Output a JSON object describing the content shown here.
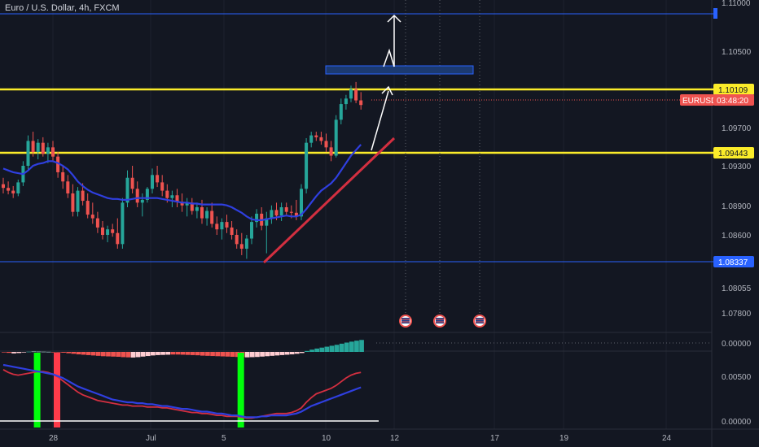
{
  "header": {
    "title": "Euro / U.S. Dollar, 4h, FXCM"
  },
  "price_axis": {
    "ticks": [
      "1.10500",
      "1.09700",
      "1.09300",
      "1.08900",
      "1.08600",
      "1.08055",
      "1.07800"
    ],
    "tick_values": [
      1.105,
      1.097,
      1.093,
      1.089,
      1.086,
      1.08055,
      1.078
    ],
    "top_tick_cut": "1.11000",
    "badges": {
      "resistance": "1.10109",
      "symbol": "EURUSD",
      "countdown": "03:48:20",
      "support": "1.09443",
      "low_line": "1.08337"
    }
  },
  "time_axis": {
    "labels": [
      "28",
      "Jul",
      "5",
      "10",
      "12",
      "17",
      "19",
      "24"
    ]
  },
  "indicator_axes": {
    "osc_ticks": [
      "0.00000"
    ],
    "ma_ticks": [
      "0.00500",
      "0.00000"
    ]
  },
  "colors": {
    "background": "#131722",
    "up": "#26a69a",
    "down": "#ef5350",
    "level_yellow": "#fbec2a",
    "level_blue": "#2962ff",
    "ma_blue": "#2f3fe0",
    "trend_red": "#d32f40",
    "signal_green": "#00ff0a",
    "signal_red": "#ff3b4a",
    "grid": "#1e222d"
  },
  "chart_data": {
    "type": "candlestick",
    "title": "Euro / U.S. Dollar, 4h, FXCM",
    "ylim": [
      1.0755,
      1.1115
    ],
    "levels": [
      {
        "price": 1.1109,
        "style": "blue"
      },
      {
        "price": 1.10109,
        "style": "yellow"
      },
      {
        "price": 1.09443,
        "style": "yellow"
      },
      {
        "price": 1.08337,
        "style": "blue"
      }
    ],
    "last_price": 1.10009,
    "candles": [
      [
        1.0915,
        1.0922,
        1.0905,
        1.0911
      ],
      [
        1.0911,
        1.0918,
        1.0904,
        1.0908
      ],
      [
        1.0908,
        1.0913,
        1.09,
        1.0905
      ],
      [
        1.0905,
        1.092,
        1.0902,
        1.0917
      ],
      [
        1.0917,
        1.094,
        1.0913,
        1.0935
      ],
      [
        1.0935,
        1.0968,
        1.093,
        1.0962
      ],
      [
        1.0962,
        1.0972,
        1.0945,
        1.095
      ],
      [
        1.095,
        1.0964,
        1.0942,
        1.096
      ],
      [
        1.096,
        1.0966,
        1.0945,
        1.0948
      ],
      [
        1.0948,
        1.096,
        1.0938,
        1.0955
      ],
      [
        1.0955,
        1.0962,
        1.094,
        1.0945
      ],
      [
        1.0945,
        1.095,
        1.0922,
        1.0928
      ],
      [
        1.0928,
        1.0935,
        1.091,
        1.0918
      ],
      [
        1.0918,
        1.0925,
        1.09,
        1.0905
      ],
      [
        1.0905,
        1.0915,
        1.088,
        1.0885
      ],
      [
        1.0885,
        1.0912,
        1.088,
        1.0908
      ],
      [
        1.0908,
        1.0916,
        1.0892,
        1.0897
      ],
      [
        1.0897,
        1.0905,
        1.0878,
        1.0882
      ],
      [
        1.0882,
        1.0895,
        1.0872,
        1.0878
      ],
      [
        1.0878,
        1.0885,
        1.0862,
        1.0868
      ],
      [
        1.0868,
        1.0875,
        1.0855,
        1.086
      ],
      [
        1.086,
        1.087,
        1.0852,
        1.0866
      ],
      [
        1.0866,
        1.0872,
        1.0858,
        1.0862
      ],
      [
        1.0862,
        1.0878,
        1.0845,
        1.085
      ],
      [
        1.085,
        1.09,
        1.0845,
        1.0895
      ],
      [
        1.0895,
        1.093,
        1.089,
        1.0922
      ],
      [
        1.0922,
        1.0935,
        1.0905,
        1.091
      ],
      [
        1.091,
        1.0918,
        1.089,
        1.0895
      ],
      [
        1.0895,
        1.0905,
        1.088,
        1.0898
      ],
      [
        1.0898,
        1.0912,
        1.0895,
        1.091
      ],
      [
        1.091,
        1.0932,
        1.0905,
        1.0925
      ],
      [
        1.0925,
        1.0935,
        1.0912,
        1.0917
      ],
      [
        1.0917,
        1.0925,
        1.0902,
        1.0908
      ],
      [
        1.0908,
        1.0915,
        1.0895,
        1.09
      ],
      [
        1.09,
        1.0908,
        1.089,
        1.0903
      ],
      [
        1.0903,
        1.091,
        1.089,
        1.0896
      ],
      [
        1.0896,
        1.0905,
        1.0885,
        1.0892
      ],
      [
        1.0892,
        1.09,
        1.088,
        1.0895
      ],
      [
        1.0895,
        1.09,
        1.0882,
        1.0886
      ],
      [
        1.0886,
        1.0895,
        1.0878,
        1.089
      ],
      [
        1.089,
        1.0898,
        1.0872,
        1.0878
      ],
      [
        1.0878,
        1.089,
        1.087,
        1.0886
      ],
      [
        1.0886,
        1.0895,
        1.0868,
        1.0872
      ],
      [
        1.0872,
        1.088,
        1.086,
        1.0866
      ],
      [
        1.0866,
        1.0878,
        1.0855,
        1.0874
      ],
      [
        1.0874,
        1.0882,
        1.0862,
        1.0868
      ],
      [
        1.0868,
        1.0875,
        1.0855,
        1.086
      ],
      [
        1.086,
        1.0866,
        1.0845,
        1.085
      ],
      [
        1.085,
        1.0862,
        1.0838,
        1.0845
      ],
      [
        1.0845,
        1.086,
        1.0834,
        1.0856
      ],
      [
        1.0856,
        1.088,
        1.085,
        1.0874
      ],
      [
        1.0874,
        1.0888,
        1.0868,
        1.0883
      ],
      [
        1.0883,
        1.089,
        1.0865,
        1.087
      ],
      [
        1.087,
        1.0885,
        1.084,
        1.0878
      ],
      [
        1.0878,
        1.0892,
        1.0872,
        1.0887
      ],
      [
        1.0887,
        1.0895,
        1.0876,
        1.0881
      ],
      [
        1.0881,
        1.0895,
        1.0875,
        1.089
      ],
      [
        1.089,
        1.0895,
        1.0882,
        1.0885
      ],
      [
        1.0885,
        1.0892,
        1.0878,
        1.0884
      ],
      [
        1.0884,
        1.0898,
        1.0876,
        1.088
      ],
      [
        1.088,
        1.0915,
        1.0876,
        1.091
      ],
      [
        1.091,
        1.0965,
        1.0905,
        1.096
      ],
      [
        1.096,
        1.0972,
        1.0955,
        1.0968
      ],
      [
        1.0968,
        1.0972,
        1.0962,
        1.0966
      ],
      [
        1.0966,
        1.0972,
        1.0958,
        1.0962
      ],
      [
        1.0962,
        1.097,
        1.095,
        1.0955
      ],
      [
        1.0955,
        1.0962,
        1.094,
        1.0946
      ],
      [
        1.0946,
        1.099,
        1.0944,
        1.0985
      ],
      [
        1.0985,
        1.1008,
        1.098,
        1.1002
      ],
      [
        1.1002,
        1.1012,
        1.0996,
        1.1008
      ],
      [
        1.1008,
        1.1022,
        1.1004,
        1.1018
      ],
      [
        1.1018,
        1.1026,
        1.1003,
        1.1006
      ],
      [
        1.1006,
        1.1015,
        1.0996,
        1.1001
      ]
    ],
    "ma": [
      1.0932,
      1.093,
      1.0928,
      1.0927,
      1.0926,
      1.093,
      1.0935,
      1.0937,
      1.0938,
      1.094,
      1.094,
      1.0938,
      1.0935,
      1.0931,
      1.0925,
      1.0918,
      1.0913,
      1.0909,
      1.0906,
      1.0904,
      1.0902,
      1.09,
      1.0899,
      1.0899,
      1.0898,
      1.0898,
      1.0899,
      1.09,
      1.09,
      1.09,
      1.09,
      1.09,
      1.0899,
      1.0898,
      1.0897,
      1.0896,
      1.0895,
      1.0895,
      1.0894,
      1.0894,
      1.0893,
      1.0893,
      1.0893,
      1.0893,
      1.0893,
      1.0892,
      1.089,
      1.0887,
      1.0884,
      1.088,
      1.0877,
      1.0876,
      1.0876,
      1.0877,
      1.0878,
      1.0879,
      1.088,
      1.0881,
      1.088,
      1.088,
      1.0882,
      1.0888,
      1.0895,
      1.0902,
      1.0908,
      1.0912,
      1.0916,
      1.0922,
      1.093,
      1.0938,
      1.0946,
      1.0952,
      1.0958
    ],
    "histogram": [
      -0.2,
      -0.5,
      -0.8,
      -0.6,
      -0.3,
      0.1,
      0.2,
      0.15,
      0.1,
      0.05,
      -0.05,
      -0.2,
      -0.4,
      -0.7,
      -1.0,
      -1.3,
      -1.5,
      -1.7,
      -1.9,
      -2.1,
      -2.3,
      -2.4,
      -2.5,
      -2.6,
      -2.8,
      -2.9,
      -3.0,
      -2.8,
      -2.5,
      -2.2,
      -1.9,
      -1.7,
      -1.6,
      -1.5,
      -1.4,
      -1.4,
      -1.5,
      -1.6,
      -1.7,
      -1.8,
      -2.0,
      -2.1,
      -2.2,
      -2.3,
      -2.4,
      -2.5,
      -2.6,
      -2.7,
      -2.8,
      -2.9,
      -2.8,
      -2.7,
      -2.5,
      -2.3,
      -2.1,
      -1.9,
      -1.7,
      -1.5,
      -1.3,
      -1.0,
      -0.6,
      0.5,
      1.2,
      1.8,
      2.3,
      2.8,
      3.3,
      3.8,
      4.4,
      5.0,
      5.5,
      6.0,
      6.4
    ],
    "ma_fast": [
      0.0055,
      0.0052,
      0.005,
      0.0049,
      0.005,
      0.0051,
      0.0052,
      0.0053,
      0.0053,
      0.0052,
      0.005,
      0.0047,
      0.0043,
      0.0039,
      0.0035,
      0.0031,
      0.0028,
      0.0026,
      0.0024,
      0.0022,
      0.0021,
      0.002,
      0.0019,
      0.0018,
      0.0017,
      0.0017,
      0.0016,
      0.0016,
      0.0016,
      0.0015,
      0.0015,
      0.0015,
      0.0014,
      0.0014,
      0.0013,
      0.0012,
      0.0011,
      0.001,
      0.0009,
      0.0009,
      0.0008,
      0.0008,
      0.0007,
      0.0006,
      0.0006,
      0.0005,
      0.0005,
      0.0005,
      0.0004,
      0.0003,
      0.0003,
      0.0004,
      0.0005,
      0.0006,
      0.0007,
      0.0008,
      0.0008,
      0.0008,
      0.0009,
      0.0011,
      0.0014,
      0.002,
      0.0025,
      0.0029,
      0.0031,
      0.0033,
      0.0035,
      0.0038,
      0.0042,
      0.0046,
      0.0049,
      0.0051,
      0.0052
    ],
    "ma_slow": [
      0.006,
      0.0059,
      0.0058,
      0.0057,
      0.0056,
      0.0055,
      0.0054,
      0.0053,
      0.0052,
      0.0051,
      0.005,
      0.0048,
      0.0046,
      0.0043,
      0.004,
      0.0037,
      0.0035,
      0.0033,
      0.0031,
      0.0029,
      0.0027,
      0.0025,
      0.0023,
      0.0022,
      0.0021,
      0.002,
      0.002,
      0.0019,
      0.0019,
      0.0018,
      0.0018,
      0.0017,
      0.0016,
      0.0016,
      0.0015,
      0.0014,
      0.0013,
      0.0013,
      0.0012,
      0.0011,
      0.001,
      0.001,
      0.0009,
      0.0008,
      0.0008,
      0.0007,
      0.0006,
      0.0006,
      0.0005,
      0.0004,
      0.0004,
      0.0004,
      0.0005,
      0.0005,
      0.0006,
      0.0006,
      0.0006,
      0.0006,
      0.0007,
      0.0008,
      0.001,
      0.0013,
      0.0016,
      0.0018,
      0.002,
      0.0022,
      0.0024,
      0.0026,
      0.0028,
      0.003,
      0.0032,
      0.0034,
      0.0036
    ],
    "signals": [
      {
        "candle": 6,
        "color": "green"
      },
      {
        "candle": 10,
        "color": "red"
      },
      {
        "candle": 47,
        "color": "green"
      }
    ]
  }
}
